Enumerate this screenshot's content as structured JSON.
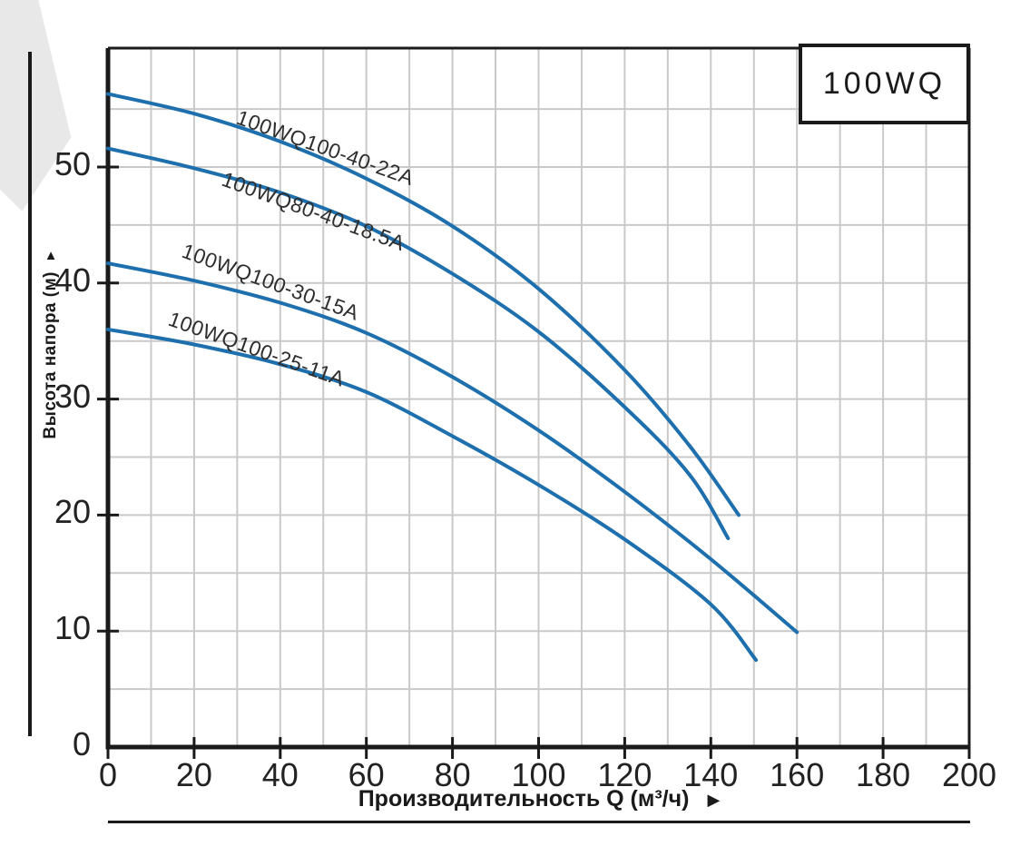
{
  "page": {
    "title_box": "100WQ"
  },
  "icons": {
    "y_axis_arrow": "▲",
    "x_axis_arrow": "▶"
  },
  "chart_data": {
    "type": "line",
    "title": "100WQ",
    "xlabel": "Производительность Q (м³/ч)",
    "ylabel": "Высота напора (м)",
    "xlim": [
      0,
      200
    ],
    "ylim": [
      0,
      60
    ],
    "x_ticks": [
      0,
      20,
      40,
      60,
      80,
      100,
      120,
      140,
      160,
      180,
      200
    ],
    "y_ticks": [
      0,
      10,
      20,
      30,
      40,
      50
    ],
    "grid": {
      "x_step": 10,
      "y_step": 5,
      "visible": true
    },
    "legend_position": "labels-on-curves",
    "curve_color": "#1e6fad",
    "grid_color": "#c9c9c9",
    "axis_color": "#1a1a1a",
    "series": [
      {
        "name": "100WQ100-40-22A",
        "points": [
          [
            0,
            56.3
          ],
          [
            20,
            54.6
          ],
          [
            40,
            52.2
          ],
          [
            60,
            49.0
          ],
          [
            80,
            44.9
          ],
          [
            100,
            39.5
          ],
          [
            120,
            32.5
          ],
          [
            135,
            26.0
          ],
          [
            146.5,
            20.0
          ]
        ]
      },
      {
        "name": "100WQ80-40-18.5A",
        "points": [
          [
            0,
            51.6
          ],
          [
            20,
            49.9
          ],
          [
            40,
            47.8
          ],
          [
            60,
            44.9
          ],
          [
            80,
            40.8
          ],
          [
            100,
            35.8
          ],
          [
            120,
            29.3
          ],
          [
            135,
            23.5
          ],
          [
            144,
            18.0
          ]
        ]
      },
      {
        "name": "100WQ100-30-15A",
        "points": [
          [
            0,
            41.7
          ],
          [
            20,
            40.2
          ],
          [
            40,
            38.3
          ],
          [
            60,
            35.7
          ],
          [
            80,
            31.9
          ],
          [
            100,
            27.3
          ],
          [
            120,
            22.0
          ],
          [
            140,
            16.2
          ],
          [
            160,
            9.9
          ]
        ]
      },
      {
        "name": "100WQ100-25-11A",
        "points": [
          [
            0,
            36.0
          ],
          [
            20,
            34.7
          ],
          [
            40,
            33.0
          ],
          [
            60,
            30.6
          ],
          [
            80,
            26.8
          ],
          [
            100,
            22.6
          ],
          [
            120,
            17.9
          ],
          [
            140,
            12.3
          ],
          [
            150.5,
            7.5
          ]
        ]
      }
    ]
  }
}
